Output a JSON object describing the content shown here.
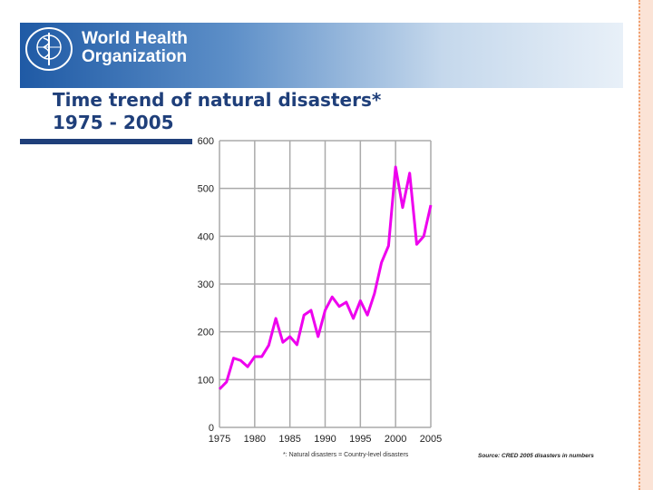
{
  "header": {
    "org_name_line1": "World Health",
    "org_name_line2": "Organization"
  },
  "slide": {
    "title_line1": "Time trend of natural disasters*",
    "title_line2": "1975 - 2005"
  },
  "footnote": "*: Natural disasters = Country-level disasters",
  "source": "Source: CRED 2005 disasters in numbers",
  "colors": {
    "line": "#ee00ee",
    "banner": "#1f5aa5",
    "title": "#1f3f7a"
  },
  "chart_data": {
    "type": "line",
    "title": "",
    "xlabel": "",
    "ylabel": "",
    "xlim": [
      1975,
      2005
    ],
    "ylim": [
      0,
      600
    ],
    "grid": true,
    "x_ticks": [
      1975,
      1980,
      1985,
      1990,
      1995,
      2000,
      2005
    ],
    "y_ticks": [
      0,
      100,
      200,
      300,
      400,
      500,
      600
    ],
    "x": [
      1975,
      1976,
      1977,
      1978,
      1979,
      1980,
      1981,
      1982,
      1983,
      1984,
      1985,
      1986,
      1987,
      1988,
      1989,
      1990,
      1991,
      1992,
      1993,
      1994,
      1995,
      1996,
      1997,
      1998,
      1999,
      2000,
      2001,
      2002,
      2003,
      2004,
      2005
    ],
    "series": [
      {
        "values": [
          80,
          95,
          145,
          140,
          127,
          148,
          148,
          172,
          228,
          178,
          190,
          173,
          235,
          245,
          190,
          245,
          273,
          253,
          262,
          228,
          265,
          235,
          280,
          345,
          380,
          545,
          460,
          532,
          383,
          400,
          465
        ]
      }
    ]
  }
}
